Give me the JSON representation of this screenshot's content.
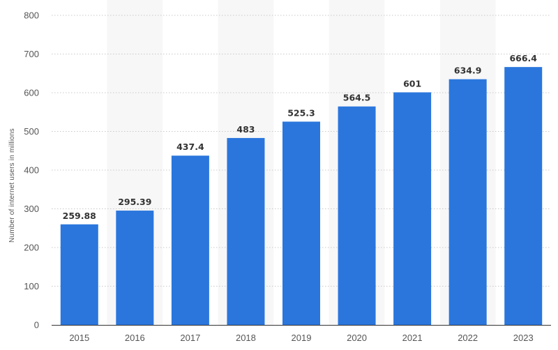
{
  "chart_data": {
    "type": "bar",
    "title": "",
    "xlabel": "",
    "ylabel": "Number of internet users in millions",
    "categories": [
      "2015",
      "2016",
      "2017",
      "2018",
      "2019",
      "2020",
      "2021",
      "2022",
      "2023"
    ],
    "values": [
      259.88,
      295.39,
      437.4,
      483,
      525.3,
      564.5,
      601,
      634.9,
      666.4
    ],
    "value_labels": [
      "259.88",
      "295.39",
      "437.4",
      "483",
      "525.3",
      "564.5",
      "601",
      "634.9",
      "666.4"
    ],
    "ylim": [
      0,
      800
    ],
    "yticks": [
      0,
      100,
      200,
      300,
      400,
      500,
      600,
      700,
      800
    ],
    "grid": true,
    "colors": {
      "bar": "#2a76dd",
      "band": "#f7f7f7",
      "grid": "#c9c9c9",
      "axis": "#333333"
    }
  }
}
